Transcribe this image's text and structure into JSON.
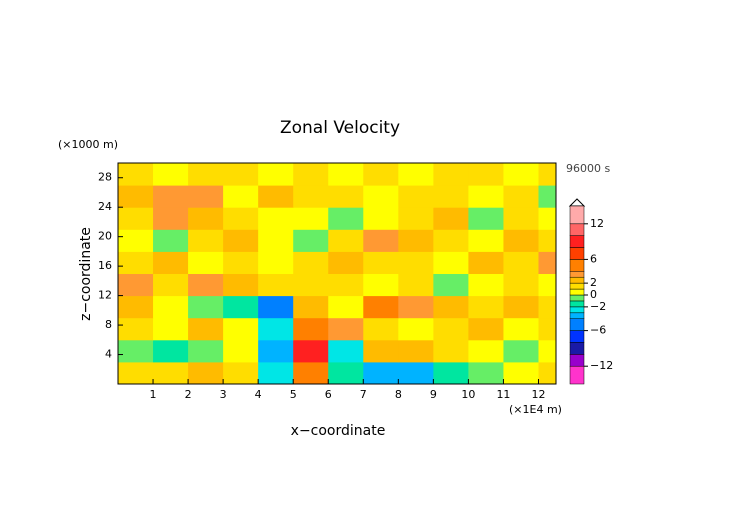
{
  "chart_data": {
    "type": "contour",
    "title": "Zonal Velocity",
    "xlabel": "x−coordinate",
    "ylabel": "z−coordinate",
    "x_unit": "(×1E4 m)",
    "y_unit": "(×1000 m)",
    "time_label": "96000 s",
    "xlim": [
      0,
      12.5
    ],
    "ylim": [
      0,
      30
    ],
    "xticks": [
      1,
      2,
      3,
      4,
      5,
      6,
      7,
      8,
      9,
      10,
      11,
      12
    ],
    "yticks": [
      4,
      8,
      12,
      16,
      20,
      24,
      28
    ],
    "x_edges": [
      0,
      1,
      2,
      3,
      4,
      5,
      6,
      7,
      8,
      9,
      10,
      11,
      12,
      12.5
    ],
    "z_edges": [
      0,
      3,
      6,
      9,
      12,
      15,
      18,
      21,
      24,
      27,
      30
    ],
    "z": [
      [
        1,
        1,
        2,
        1,
        -3,
        4,
        -2,
        -4,
        -4,
        -2,
        -1,
        0,
        1
      ],
      [
        -1,
        -2,
        -1,
        0,
        -4,
        8,
        -3,
        2,
        2,
        1,
        0,
        -1,
        0
      ],
      [
        1,
        0,
        2,
        0,
        -3,
        4,
        3,
        1,
        0,
        1,
        2,
        0,
        1
      ],
      [
        2,
        0,
        -1,
        -2,
        -6,
        2,
        0,
        4,
        3,
        2,
        1,
        2,
        1
      ],
      [
        3,
        1,
        3,
        2,
        1,
        1,
        1,
        0,
        1,
        -1,
        0,
        1,
        0
      ],
      [
        1,
        2,
        0,
        1,
        0,
        1,
        2,
        1,
        1,
        0,
        2,
        1,
        3
      ],
      [
        0,
        -1,
        1,
        2,
        0,
        -1,
        1,
        3,
        2,
        1,
        0,
        2,
        1
      ],
      [
        1,
        3,
        2,
        1,
        0,
        0,
        -1,
        0,
        1,
        2,
        -1,
        1,
        0
      ],
      [
        2,
        3,
        3,
        0,
        2,
        1,
        1,
        0,
        1,
        1,
        0,
        1,
        -1
      ],
      [
        1,
        0,
        1,
        1,
        0,
        1,
        0,
        1,
        0,
        1,
        1,
        0,
        1
      ]
    ],
    "levels": [
      -15,
      -12,
      -10,
      -8,
      -6,
      -4,
      -3,
      -2,
      -1,
      0,
      1,
      2,
      3,
      4,
      6,
      8,
      10,
      12,
      15
    ],
    "colors": [
      "#ff33cc",
      "#9900cc",
      "#1a1aa6",
      "#0033ff",
      "#0080ff",
      "#00b3ff",
      "#00e6e6",
      "#00e6a0",
      "#66ee66",
      "#ffff00",
      "#ffdd00",
      "#ffbb00",
      "#ff9933",
      "#ff8000",
      "#ff4000",
      "#ff2020",
      "#ff6666",
      "#ffaaaa"
    ],
    "clim": [
      -15,
      15
    ],
    "cticks": [
      12,
      6,
      2,
      0,
      {
        "value": -2,
        "label": "−2"
      },
      {
        "value": -6,
        "label": "−6"
      },
      {
        "value": -12,
        "label": "−12"
      }
    ]
  }
}
